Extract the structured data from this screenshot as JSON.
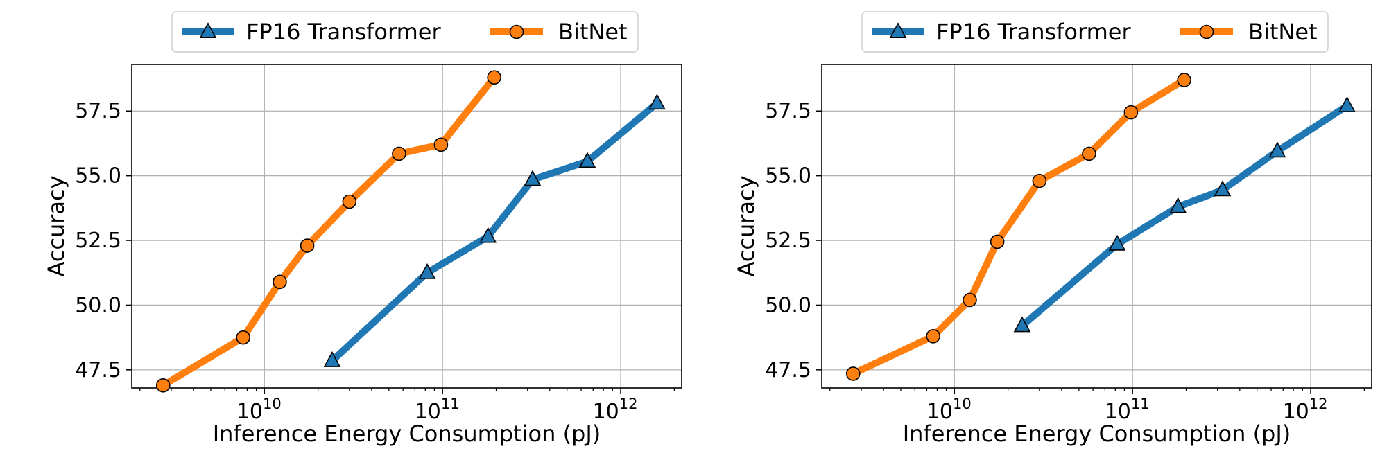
{
  "chart_data": [
    {
      "type": "line",
      "xscale": "log",
      "xlabel": "Inference Energy Consumption (pJ)",
      "ylabel": "Accuracy",
      "xlim": [
        1800000000.0,
        2200000000000.0
      ],
      "ylim": [
        46.8,
        59.3
      ],
      "xticks": [
        {
          "base": "10",
          "exp": "10",
          "value": 10000000000.0
        },
        {
          "base": "10",
          "exp": "11",
          "value": 100000000000.0
        },
        {
          "base": "10",
          "exp": "12",
          "value": 1000000000000.0
        }
      ],
      "yticks": [
        {
          "label": "47.5",
          "value": 47.5
        },
        {
          "label": "50.0",
          "value": 50.0
        },
        {
          "label": "52.5",
          "value": 52.5
        },
        {
          "label": "55.0",
          "value": 55.0
        },
        {
          "label": "57.5",
          "value": 57.5
        }
      ],
      "grid": true,
      "legend": "top-center",
      "series": [
        {
          "name": "FP16 Transformer",
          "color": "#1f77b4",
          "marker": "triangle",
          "x": [
            24000000000.0,
            82000000000.0,
            180000000000.0,
            320000000000.0,
            650000000000.0,
            1600000000000.0
          ],
          "y": [
            47.85,
            51.25,
            52.65,
            54.85,
            55.55,
            57.8
          ]
        },
        {
          "name": "BitNet",
          "color": "#ff7f0e",
          "marker": "circle",
          "x": [
            2700000000.0,
            7600000000.0,
            12200000000.0,
            17400000000.0,
            30000000000.0,
            57000000000.0,
            98000000000.0,
            195000000000.0
          ],
          "y": [
            46.9,
            48.75,
            50.9,
            52.3,
            54.0,
            55.85,
            56.2,
            58.8
          ]
        }
      ]
    },
    {
      "type": "line",
      "xscale": "log",
      "xlabel": "Inference Energy Consumption (pJ)",
      "ylabel": "Accuracy",
      "xlim": [
        1800000000.0,
        2200000000000.0
      ],
      "ylim": [
        46.8,
        59.3
      ],
      "xticks": [
        {
          "base": "10",
          "exp": "10",
          "value": 10000000000.0
        },
        {
          "base": "10",
          "exp": "11",
          "value": 100000000000.0
        },
        {
          "base": "10",
          "exp": "12",
          "value": 1000000000000.0
        }
      ],
      "yticks": [
        {
          "label": "47.5",
          "value": 47.5
        },
        {
          "label": "50.0",
          "value": 50.0
        },
        {
          "label": "52.5",
          "value": 52.5
        },
        {
          "label": "55.0",
          "value": 55.0
        },
        {
          "label": "57.5",
          "value": 57.5
        }
      ],
      "grid": true,
      "legend": "top-center",
      "series": [
        {
          "name": "FP16 Transformer",
          "color": "#1f77b4",
          "marker": "triangle",
          "x": [
            24000000000.0,
            82000000000.0,
            180000000000.0,
            320000000000.0,
            650000000000.0,
            1600000000000.0
          ],
          "y": [
            49.2,
            52.35,
            53.8,
            54.45,
            55.95,
            57.7
          ]
        },
        {
          "name": "BitNet",
          "color": "#ff7f0e",
          "marker": "circle",
          "x": [
            2700000000.0,
            7600000000.0,
            12200000000.0,
            17400000000.0,
            30000000000.0,
            57000000000.0,
            98000000000.0,
            195000000000.0
          ],
          "y": [
            47.35,
            48.8,
            50.2,
            52.45,
            54.8,
            55.85,
            57.45,
            58.7
          ]
        }
      ]
    }
  ]
}
